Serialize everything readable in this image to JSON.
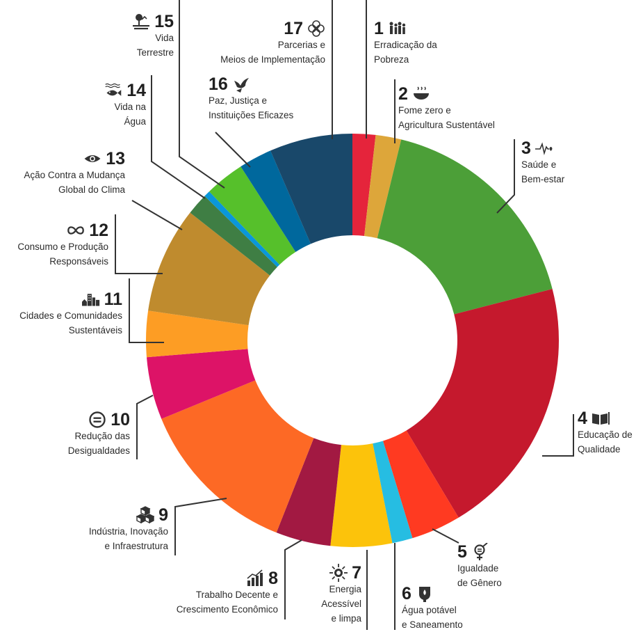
{
  "chart_data": {
    "type": "pie",
    "donut": true,
    "colors": [
      "#e5243b",
      "#dda63a",
      "#4c9f38",
      "#c5192d",
      "#ff3a21",
      "#26bde2",
      "#fcc30b",
      "#a21942",
      "#fd6925",
      "#dd1367",
      "#fd9d24",
      "#bf8b2e",
      "#3f7e44",
      "#0a97d9",
      "#56c02b",
      "#00689d",
      "#19486a"
    ],
    "slices": [
      {
        "number": "1",
        "label": "Erradicação da Pobreza",
        "value": 1.8,
        "icon": "people-icon"
      },
      {
        "number": "2",
        "label": "Fome zero e Agricultura Sustentável",
        "value": 2.0,
        "icon": "bowl-icon"
      },
      {
        "number": "3",
        "label": "Saúde e Bem-estar",
        "value": 17.2,
        "icon": "heartbeat-icon"
      },
      {
        "number": "4",
        "label": "Educação de Qualidade",
        "value": 20.4,
        "icon": "book-icon"
      },
      {
        "number": "5",
        "label": "Igualdade de Gênero",
        "value": 3.9,
        "icon": "gender-icon"
      },
      {
        "number": "6",
        "label": "Água potável e Saneamento",
        "value": 1.6,
        "icon": "water-drop-icon"
      },
      {
        "number": "7",
        "label": "Energia Acessível e limpa",
        "value": 4.8,
        "icon": "sun-icon"
      },
      {
        "number": "8",
        "label": "Trabalho Decente e Crescimento Econômico",
        "value": 4.3,
        "icon": "growth-chart-icon"
      },
      {
        "number": "9",
        "label": "Indústria, Inovação e Infraestrutura",
        "value": 12.8,
        "icon": "cubes-icon"
      },
      {
        "number": "10",
        "label": "Redução das Desigualdades",
        "value": 4.9,
        "icon": "equality-icon"
      },
      {
        "number": "11",
        "label": "Cidades e Comunidades Sustentáveis",
        "value": 3.6,
        "icon": "city-icon"
      },
      {
        "number": "12",
        "label": "Consumo e Produção Responsáveis",
        "value": 8.3,
        "icon": "infinity-icon"
      },
      {
        "number": "13",
        "label": "Ação Contra a Mudança Global do Clima",
        "value": 1.7,
        "icon": "eye-icon"
      },
      {
        "number": "14",
        "label": "Vida na Água",
        "value": 0.5,
        "icon": "fish-icon"
      },
      {
        "number": "15",
        "label": "Vida Terrestre",
        "value": 3.1,
        "icon": "tree-icon"
      },
      {
        "number": "16",
        "label": "Paz, Justiça e Instituições Eficazes",
        "value": 2.6,
        "icon": "dove-icon"
      },
      {
        "number": "17",
        "label": "Parcerias e Meios de Implementação",
        "value": 6.5,
        "icon": "flower-icon"
      }
    ]
  },
  "labels": {
    "s1": {
      "number": "1",
      "line1": "Erradicação da",
      "line2": "Pobreza"
    },
    "s2": {
      "number": "2",
      "line1": "Fome zero e",
      "line2": "Agricultura Sustentável"
    },
    "s3": {
      "number": "3",
      "line1": "Saúde e",
      "line2": "Bem-estar"
    },
    "s4": {
      "number": "4",
      "line1": "Educação de",
      "line2": "Qualidade"
    },
    "s5": {
      "number": "5",
      "line1": "Igualdade",
      "line2": "de Gênero"
    },
    "s6": {
      "number": "6",
      "line1": "Água potável",
      "line2": "e Saneamento"
    },
    "s7": {
      "number": "7",
      "line1": "Energia",
      "line2": "Acessível",
      "line3": "e limpa"
    },
    "s8": {
      "number": "8",
      "line1": "Trabalho Decente e",
      "line2": "Crescimento Econômico"
    },
    "s9": {
      "number": "9",
      "line1": "Indústria, Inovação",
      "line2": "e Infraestrutura"
    },
    "s10": {
      "number": "10",
      "line1": "Redução das",
      "line2": "Desigualdades"
    },
    "s11": {
      "number": "11",
      "line1": "Cidades e Comunidades",
      "line2": "Sustentáveis"
    },
    "s12": {
      "number": "12",
      "line1": "Consumo e Produção",
      "line2": "Responsáveis"
    },
    "s13": {
      "number": "13",
      "line1": "Ação Contra a Mudança",
      "line2": "Global do Clima"
    },
    "s14": {
      "number": "14",
      "line1": "Vida na",
      "line2": "Água"
    },
    "s15": {
      "number": "15",
      "line1": "Vida",
      "line2": "Terrestre"
    },
    "s16": {
      "number": "16",
      "line1": "Paz, Justiça e",
      "line2": "Instituições Eficazes"
    },
    "s17": {
      "number": "17",
      "line1": "Parcerias e",
      "line2": "Meios de Implementação"
    }
  }
}
